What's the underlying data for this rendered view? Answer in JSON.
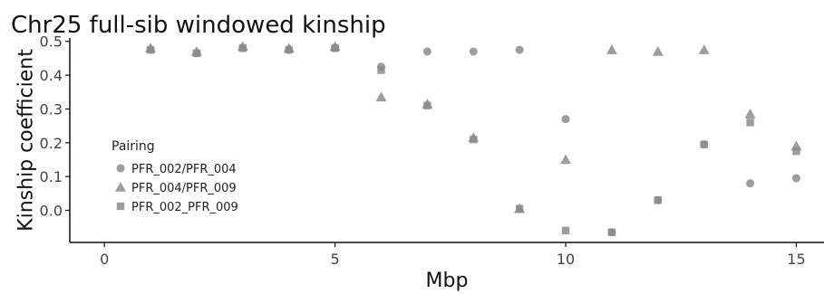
{
  "chart_data": {
    "type": "scatter",
    "title": "Chr25 full-sib windowed kinship",
    "xlabel": "Mbp",
    "ylabel": "Kinship coefficient",
    "xlim": [
      -0.75,
      15.6
    ],
    "ylim": [
      -0.095,
      0.51
    ],
    "x_ticks": [
      0,
      5,
      10,
      15
    ],
    "y_ticks": [
      0.0,
      0.1,
      0.2,
      0.3,
      0.4,
      0.5
    ],
    "x_tick_labels": [
      "0",
      "5",
      "10",
      "15"
    ],
    "y_tick_labels": [
      "0.0",
      "0.1",
      "0.2",
      "0.3",
      "0.4",
      "0.5"
    ],
    "grid": false,
    "legend": {
      "title": "Pairing",
      "position": "left"
    },
    "series": [
      {
        "name": "PFR_002/PFR_004",
        "marker": "circle",
        "color": "#8c8c8c",
        "x": [
          1,
          2,
          3,
          4,
          5,
          6,
          7,
          8,
          9,
          10,
          11,
          12,
          13,
          14,
          15
        ],
        "y": [
          0.475,
          0.465,
          0.48,
          0.475,
          0.48,
          0.425,
          0.47,
          0.47,
          0.475,
          0.27,
          -0.065,
          0.03,
          0.195,
          0.08,
          0.095
        ]
      },
      {
        "name": "PFR_004/PFR_009",
        "marker": "triangle",
        "color": "#8c8c8c",
        "x": [
          1,
          2,
          3,
          4,
          5,
          6,
          7,
          8,
          9,
          10,
          11,
          12,
          13,
          14,
          15
        ],
        "y": [
          0.48,
          0.47,
          0.485,
          0.48,
          0.485,
          0.335,
          0.315,
          0.215,
          0.005,
          0.15,
          0.475,
          0.47,
          0.475,
          0.285,
          0.19
        ]
      },
      {
        "name": "PFR_002_PFR_009",
        "marker": "square",
        "color": "#8c8c8c",
        "x": [
          1,
          2,
          3,
          4,
          5,
          6,
          7,
          8,
          9,
          10,
          11,
          12,
          13,
          14,
          15
        ],
        "y": [
          0.475,
          0.465,
          0.48,
          0.475,
          0.48,
          0.415,
          0.31,
          0.21,
          0.005,
          -0.06,
          -0.065,
          0.03,
          0.195,
          0.26,
          0.175
        ]
      }
    ]
  }
}
